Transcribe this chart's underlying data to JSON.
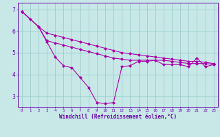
{
  "x": [
    0,
    1,
    2,
    3,
    4,
    5,
    6,
    7,
    8,
    9,
    10,
    11,
    12,
    13,
    14,
    15,
    16,
    17,
    18,
    19,
    20,
    21,
    22,
    23
  ],
  "line_dip": [
    6.9,
    6.55,
    6.2,
    5.5,
    4.8,
    4.4,
    4.3,
    3.85,
    3.4,
    2.7,
    2.65,
    2.7,
    4.35,
    4.4,
    4.6,
    4.6,
    4.65,
    4.45,
    4.45,
    4.45,
    4.35,
    4.75,
    4.35,
    4.45
  ],
  "line_upper": [
    6.9,
    null,
    6.2,
    5.9,
    5.8,
    5.7,
    5.6,
    5.5,
    5.4,
    5.3,
    5.2,
    5.1,
    5.0,
    4.95,
    4.9,
    4.85,
    4.8,
    4.75,
    4.7,
    4.65,
    4.6,
    4.6,
    4.55,
    4.5
  ],
  "line_lower": [
    6.9,
    null,
    6.2,
    5.55,
    5.45,
    5.35,
    5.25,
    5.15,
    5.05,
    4.95,
    4.85,
    4.75,
    4.7,
    4.65,
    4.65,
    4.65,
    4.65,
    4.65,
    4.6,
    4.55,
    4.5,
    4.5,
    4.5,
    4.45
  ],
  "bg_color": "#c8e8e8",
  "line_color": "#aa00aa",
  "grid_color": "#99cccc",
  "axis_color": "#6600aa",
  "xlabel": "Windchill (Refroidissement éolien,°C)",
  "ylim": [
    2.5,
    7.3
  ],
  "xlim": [
    -0.5,
    23.5
  ],
  "yticks": [
    3,
    4,
    5,
    6,
    7
  ],
  "xticks": [
    0,
    1,
    2,
    3,
    4,
    5,
    6,
    7,
    8,
    9,
    10,
    11,
    12,
    13,
    14,
    15,
    16,
    17,
    18,
    19,
    20,
    21,
    22,
    23
  ]
}
